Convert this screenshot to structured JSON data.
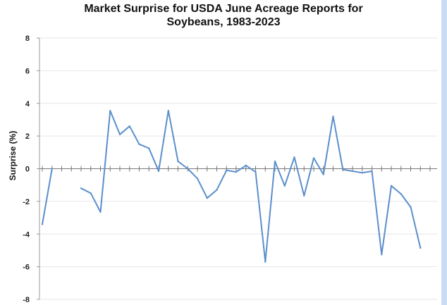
{
  "chart_data": {
    "type": "line",
    "title_line1": "Market Surprise for USDA June Acreage Reports for",
    "title_line2": "Soybeans, 1983-2023",
    "xlabel": "",
    "ylabel": "Surprise (%)",
    "ylim": [
      -8,
      8
    ],
    "yticks": [
      "8",
      "6",
      "4",
      "2",
      "0",
      "-2",
      "-4",
      "-6",
      "-8"
    ],
    "xlim": [
      1983,
      2023
    ],
    "grid": true,
    "series": [
      {
        "color": "#5b8fcc",
        "x": [
          1983,
          1984,
          1985,
          1986,
          1987,
          1988,
          1989,
          1990,
          1991,
          1992,
          1993,
          1994,
          1995,
          1996,
          1997,
          1998,
          1999,
          2000,
          2001,
          2002,
          2003,
          2004,
          2005,
          2006,
          2007,
          2008,
          2009,
          2010,
          2011,
          2012,
          2013,
          2014,
          2015,
          2016,
          2017,
          2018,
          2019,
          2020,
          2021,
          2022,
          2023
        ],
        "values": [
          -3.4,
          0.0,
          null,
          null,
          -1.2,
          -1.5,
          -2.65,
          3.55,
          2.1,
          2.6,
          1.5,
          1.25,
          -0.15,
          3.55,
          0.45,
          0.0,
          -0.6,
          -1.8,
          -1.3,
          -0.1,
          -0.2,
          0.2,
          -0.2,
          -5.7,
          0.45,
          -1.05,
          0.7,
          -1.65,
          0.65,
          -0.35,
          3.2,
          -0.05,
          -0.15,
          -0.25,
          -0.15,
          -5.25,
          -1.05,
          -1.55,
          -2.35,
          -4.85,
          null
        ]
      }
    ]
  }
}
